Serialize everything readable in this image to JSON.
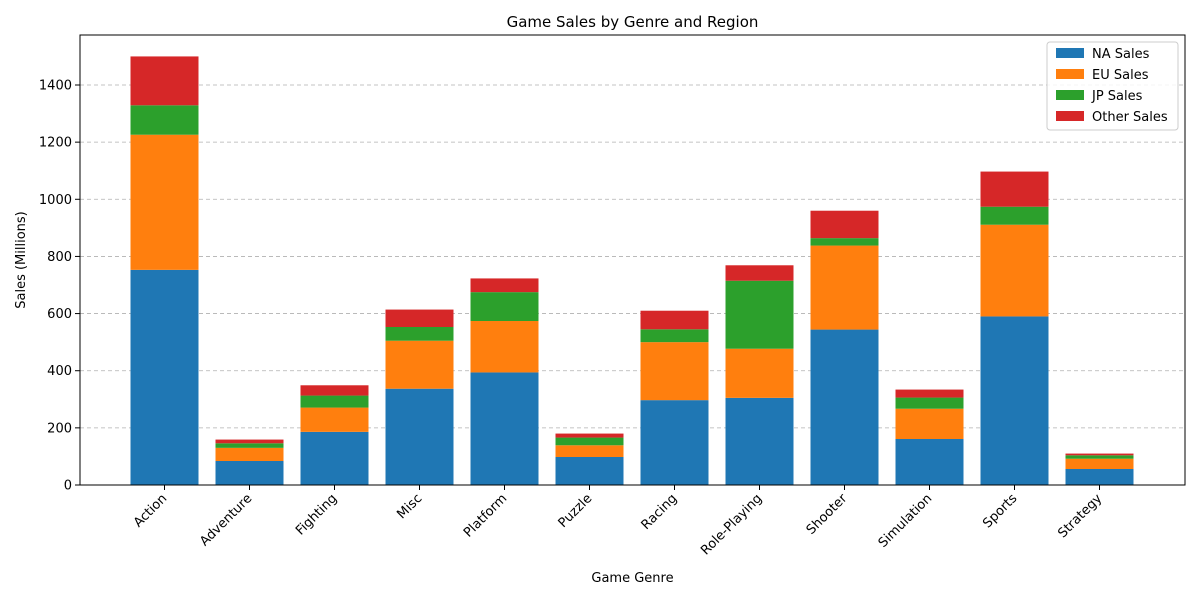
{
  "chart_data": {
    "type": "bar",
    "stacked": true,
    "title": "Game Sales by Genre and Region",
    "xlabel": "Game Genre",
    "ylabel": "Sales (Millions)",
    "ylim": [
      0,
      1575
    ],
    "yticks": [
      0,
      200,
      400,
      600,
      800,
      1000,
      1200,
      1400
    ],
    "grid": "y-dashed",
    "legend_position": "top-right",
    "categories": [
      "Action",
      "Adventure",
      "Fighting",
      "Misc",
      "Platform",
      "Puzzle",
      "Racing",
      "Role-Playing",
      "Shooter",
      "Simulation",
      "Sports",
      "Strategy"
    ],
    "series": [
      {
        "name": "NA Sales",
        "color": "#1f77b4",
        "values": [
          753,
          84,
          186,
          337,
          394,
          98,
          297,
          305,
          544,
          161,
          590,
          56
        ]
      },
      {
        "name": "EU Sales",
        "color": "#ff7f0e",
        "values": [
          473,
          46,
          85,
          168,
          180,
          41,
          203,
          172,
          294,
          106,
          321,
          36
        ]
      },
      {
        "name": "JP Sales",
        "color": "#2ca02c",
        "values": [
          103,
          16,
          42,
          48,
          101,
          27,
          45,
          238,
          26,
          39,
          63,
          12
        ]
      },
      {
        "name": "Other Sales",
        "color": "#d62728",
        "values": [
          171,
          13,
          36,
          61,
          48,
          14,
          65,
          54,
          96,
          28,
          123,
          6
        ]
      }
    ]
  }
}
